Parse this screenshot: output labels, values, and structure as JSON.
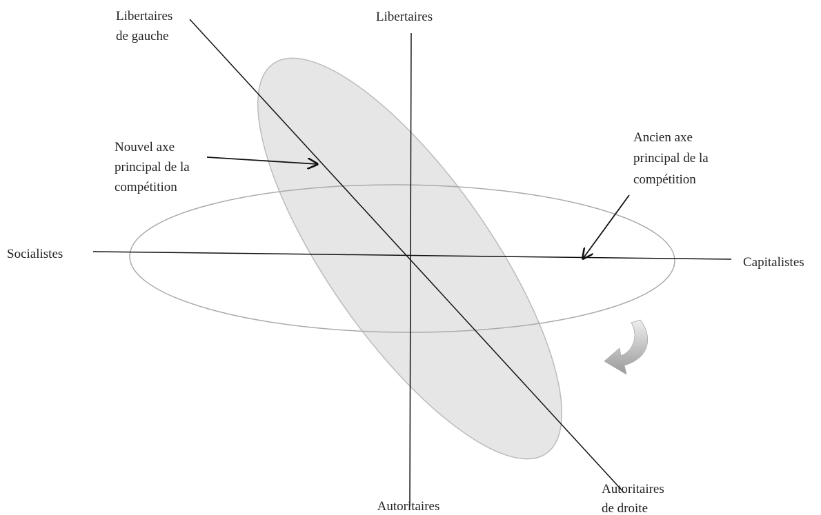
{
  "labels": {
    "top": "Libertaires",
    "bottom": "Autoritaires",
    "left": "Socialistes",
    "right": "Capitalistes",
    "top_left": [
      "Libertaires",
      "de gauche"
    ],
    "bottom_right": [
      "Autoritaires",
      "de droite"
    ],
    "new_axis": [
      "Nouvel axe",
      "principal de la",
      "compétition"
    ],
    "old_axis": [
      "Ancien axe",
      "principal de la",
      "compétition"
    ]
  }
}
